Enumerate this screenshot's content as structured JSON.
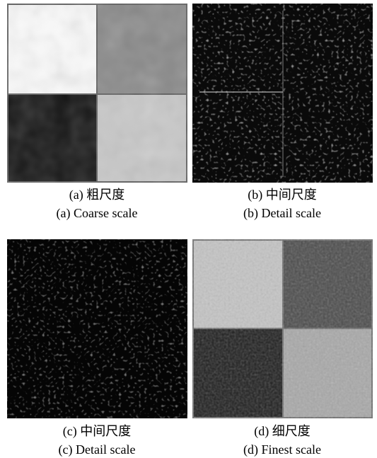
{
  "figure": {
    "panels": [
      {
        "caption_zh": "(a) 粗尺度",
        "caption_en": "(a) Coarse scale"
      },
      {
        "caption_zh": "(b) 中间尺度",
        "caption_en": "(b) Detail scale"
      },
      {
        "caption_zh": "(c) 中间尺度",
        "caption_en": "(c) Detail scale"
      },
      {
        "caption_zh": "(d) 细尺度",
        "caption_en": "(d) Finest scale"
      }
    ]
  }
}
